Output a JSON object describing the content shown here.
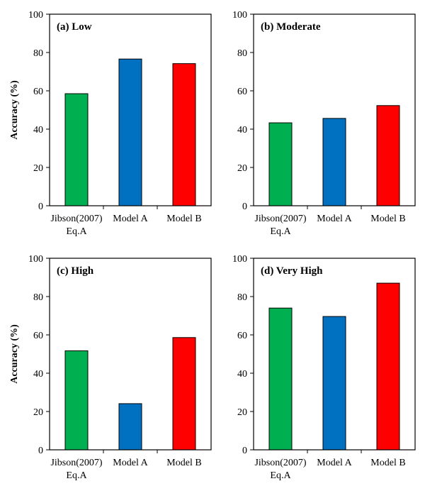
{
  "chart_data": [
    {
      "type": "bar",
      "title": "(a) Low",
      "ylabel": "Accuracy (%)",
      "xlabel": "",
      "ylim": [
        0,
        100
      ],
      "yticks": [
        0,
        20,
        40,
        60,
        80,
        100
      ],
      "grid": false,
      "categories": [
        [
          "Jibson(2007)",
          "Eq.A"
        ],
        [
          "Model A"
        ],
        [
          "Model B"
        ]
      ],
      "values": [
        58.5,
        76.6,
        74.2
      ],
      "colors": [
        "#00b050",
        "#0070c0",
        "#ff0000"
      ]
    },
    {
      "type": "bar",
      "title": "(b) Moderate",
      "ylabel": "",
      "xlabel": "",
      "ylim": [
        0,
        100
      ],
      "yticks": [
        0,
        20,
        40,
        60,
        80,
        100
      ],
      "grid": false,
      "categories": [
        [
          "Jibson(2007)",
          "Eq.A"
        ],
        [
          "Model A"
        ],
        [
          "Model B"
        ]
      ],
      "values": [
        43.3,
        45.6,
        52.3
      ],
      "colors": [
        "#00b050",
        "#0070c0",
        "#ff0000"
      ]
    },
    {
      "type": "bar",
      "title": "(c) High",
      "ylabel": "Accuracy (%)",
      "xlabel": "",
      "ylim": [
        0,
        100
      ],
      "yticks": [
        0,
        20,
        40,
        60,
        80,
        100
      ],
      "grid": false,
      "categories": [
        [
          "Jibson(2007)",
          "Eq.A"
        ],
        [
          "Model A"
        ],
        [
          "Model B"
        ]
      ],
      "values": [
        51.7,
        24.1,
        58.6
      ],
      "colors": [
        "#00b050",
        "#0070c0",
        "#ff0000"
      ]
    },
    {
      "type": "bar",
      "title": "(d) Very High",
      "ylabel": "",
      "xlabel": "",
      "ylim": [
        0,
        100
      ],
      "yticks": [
        0,
        20,
        40,
        60,
        80,
        100
      ],
      "grid": false,
      "categories": [
        [
          "Jibson(2007)",
          "Eq.A"
        ],
        [
          "Model A"
        ],
        [
          "Model B"
        ]
      ],
      "values": [
        74.0,
        69.6,
        87.0
      ],
      "colors": [
        "#00b050",
        "#0070c0",
        "#ff0000"
      ]
    }
  ]
}
